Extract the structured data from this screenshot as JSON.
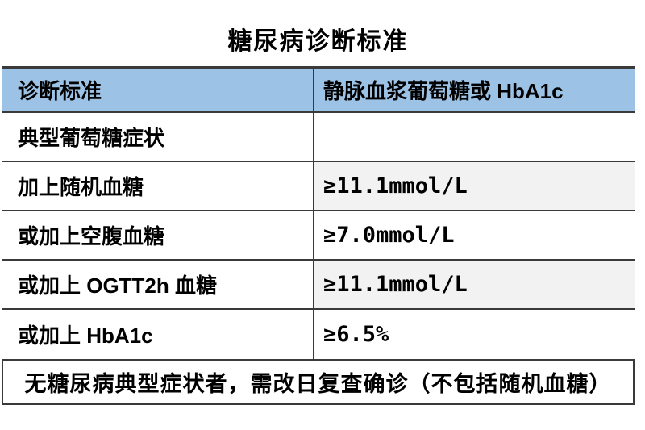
{
  "title": "糖尿病诊断标准",
  "table": {
    "columns": [
      {
        "label": "诊断标准"
      },
      {
        "label": "静脉血浆葡萄糖或 HbA1c"
      }
    ],
    "rows": [
      {
        "criterion": "典型葡萄糖症状",
        "value": "",
        "shaded": false
      },
      {
        "criterion": "加上随机血糖",
        "value": "≥11.1mmol/L",
        "shaded": true
      },
      {
        "criterion": "或加上空腹血糖",
        "value": "≥7.0mmol/L",
        "shaded": false
      },
      {
        "criterion": "或加上 OGTT2h 血糖",
        "value": "≥11.1mmol/L",
        "shaded": true
      },
      {
        "criterion": "或加上 HbA1c",
        "value": "≥6.5%",
        "shaded": false
      }
    ],
    "footnote": "无糖尿病典型症状者，需改日复查确诊（不包括随机血糖）"
  },
  "colors": {
    "header_bg": "#9cc2e5",
    "shaded_cell_bg": "#f2f2f2",
    "border": "#3a3a3a",
    "text": "#000000",
    "background": "#ffffff"
  }
}
